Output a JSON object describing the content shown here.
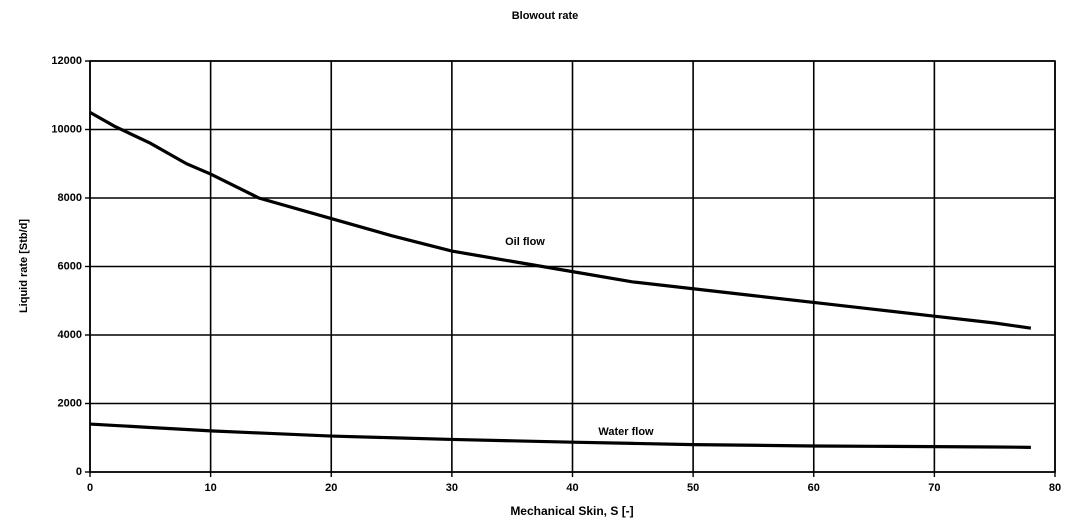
{
  "chart_data": {
    "type": "line",
    "title": "Blowout rate",
    "x_label": "Mechanical Skin, S [-]",
    "y_label": "Liquid rate [Stb/d]",
    "x": [
      0,
      2,
      5,
      8,
      10,
      14,
      20,
      25,
      30,
      35,
      40,
      45,
      50,
      55,
      60,
      65,
      70,
      75,
      78
    ],
    "series": [
      {
        "name": "Oil flow",
        "color": "#000000",
        "values": [
          10500,
          10100,
          9600,
          9000,
          8700,
          8000,
          7400,
          6900,
          6450,
          6150,
          5850,
          5550,
          5350,
          5150,
          4950,
          4750,
          4550,
          4350,
          4200
        ]
      },
      {
        "name": "Water flow",
        "color": "#000000",
        "values": [
          1400,
          1360,
          1300,
          1240,
          1200,
          1140,
          1050,
          1000,
          950,
          910,
          870,
          835,
          800,
          780,
          760,
          750,
          740,
          730,
          720
        ]
      }
    ],
    "xlim": [
      0,
      80
    ],
    "xticks": [
      0,
      10,
      20,
      30,
      40,
      50,
      60,
      70,
      80
    ],
    "ylim": [
      0,
      12000
    ],
    "yticks": [
      0,
      2000,
      4000,
      6000,
      8000,
      10000,
      12000
    ],
    "grid": true
  }
}
